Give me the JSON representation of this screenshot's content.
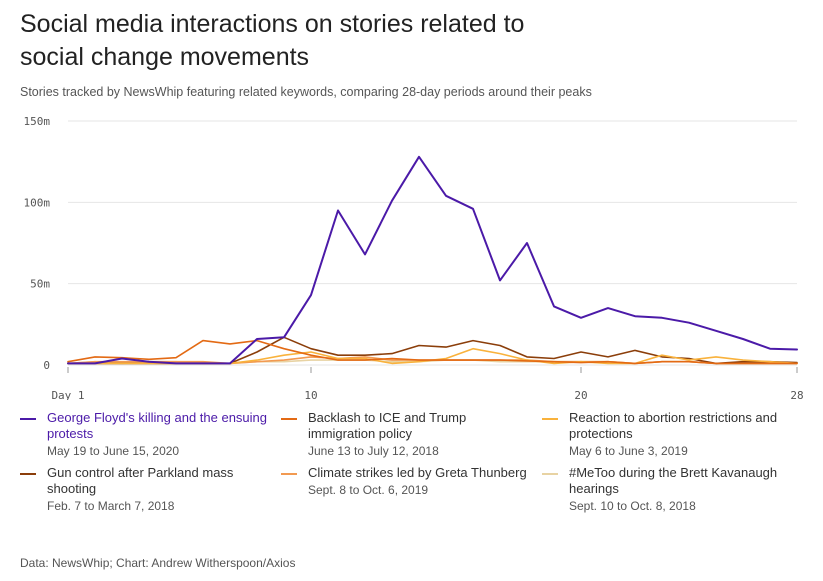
{
  "header": {
    "title": "Social media interactions on stories related to social change movements",
    "subtitle": "Stories tracked by NewsWhip featuring related keywords, comparing 28-day periods around their peaks"
  },
  "footer": {
    "source": "Data: NewsWhip; Chart: Andrew Witherspoon/Axios"
  },
  "chart_data": {
    "type": "line",
    "title": "Social media interactions on stories related to social change movements",
    "xlabel": "",
    "ylabel": "",
    "xlim": [
      1,
      28
    ],
    "ylim": [
      0,
      150
    ],
    "x_ticks": [
      1,
      10,
      20,
      28
    ],
    "x_tick_labels": [
      "Day 1",
      "10",
      "20",
      "28"
    ],
    "y_ticks": [
      0,
      50,
      100,
      150
    ],
    "y_tick_labels": [
      "0",
      "50m",
      "100m",
      "150m"
    ],
    "grid": true,
    "x": [
      1,
      2,
      3,
      4,
      5,
      6,
      7,
      8,
      9,
      10,
      11,
      12,
      13,
      14,
      15,
      16,
      17,
      18,
      19,
      20,
      21,
      22,
      23,
      24,
      25,
      26,
      27,
      28
    ],
    "series": [
      {
        "name": "George Floyd's killing and the ensuing protests",
        "dates": "May 19 to June 15, 2020",
        "color": "#4b1aa8",
        "width": 2,
        "values": [
          1,
          1,
          4,
          2,
          1,
          1,
          1,
          16,
          17,
          43,
          95,
          68,
          101,
          128,
          104,
          96,
          52,
          75,
          36,
          29,
          35,
          30,
          29,
          26,
          21,
          16,
          10,
          9.5
        ]
      },
      {
        "name": "Backlash to ICE and Trump immigration policy",
        "dates": "June 13 to July 12, 2018",
        "color": "#e36a14",
        "width": 1.6,
        "values": [
          2,
          5,
          4.5,
          3.5,
          4.5,
          15,
          13,
          15,
          10,
          6,
          3,
          3,
          4,
          3,
          3,
          3,
          3,
          2.5,
          2,
          1.5,
          2,
          1,
          2,
          2,
          1,
          1,
          1,
          1
        ]
      },
      {
        "name": "Reaction to abortion restrictions and protections",
        "dates": "May 6 to June 3, 2019",
        "color": "#f9b23c",
        "width": 1.6,
        "values": [
          1,
          1,
          1,
          1,
          1,
          1,
          1,
          3,
          6,
          8,
          4,
          4,
          1,
          2,
          4,
          10,
          7,
          3,
          1,
          2,
          1,
          1,
          6,
          3,
          5,
          3,
          2,
          1
        ]
      },
      {
        "name": "Gun control after Parkland mass shooting",
        "dates": "Feb. 7 to March 7, 2018",
        "color": "#8b3e0a",
        "width": 1.6,
        "values": [
          1,
          1,
          1,
          1,
          1,
          1,
          1,
          8,
          17,
          10,
          6,
          6,
          7,
          12,
          11,
          15,
          12,
          5,
          4,
          8,
          5,
          9,
          5,
          4,
          1,
          2,
          2,
          1.5
        ]
      },
      {
        "name": "Climate strikes led by Greta Thunberg",
        "dates": "Sept. 8 to Oct. 6, 2019",
        "color": "#f29a51",
        "width": 1.6,
        "values": [
          1,
          2,
          2,
          2,
          2,
          2,
          1,
          2,
          3,
          5,
          4,
          5,
          3,
          3,
          3,
          3,
          3,
          3,
          2,
          2,
          2,
          1,
          2,
          2,
          1,
          1,
          1,
          1
        ]
      },
      {
        "name": "#MeToo during the Brett Kavanaugh hearings",
        "dates": "Sept. 10 to Oct. 8, 2018",
        "color": "#e8d3a3",
        "width": 1.6,
        "values": [
          1,
          2,
          1,
          2,
          2,
          1,
          1,
          2,
          2,
          3,
          3,
          3,
          2,
          2,
          3,
          3,
          2,
          2,
          2,
          2,
          2,
          1,
          2,
          2,
          1,
          1,
          1,
          1
        ]
      }
    ]
  }
}
